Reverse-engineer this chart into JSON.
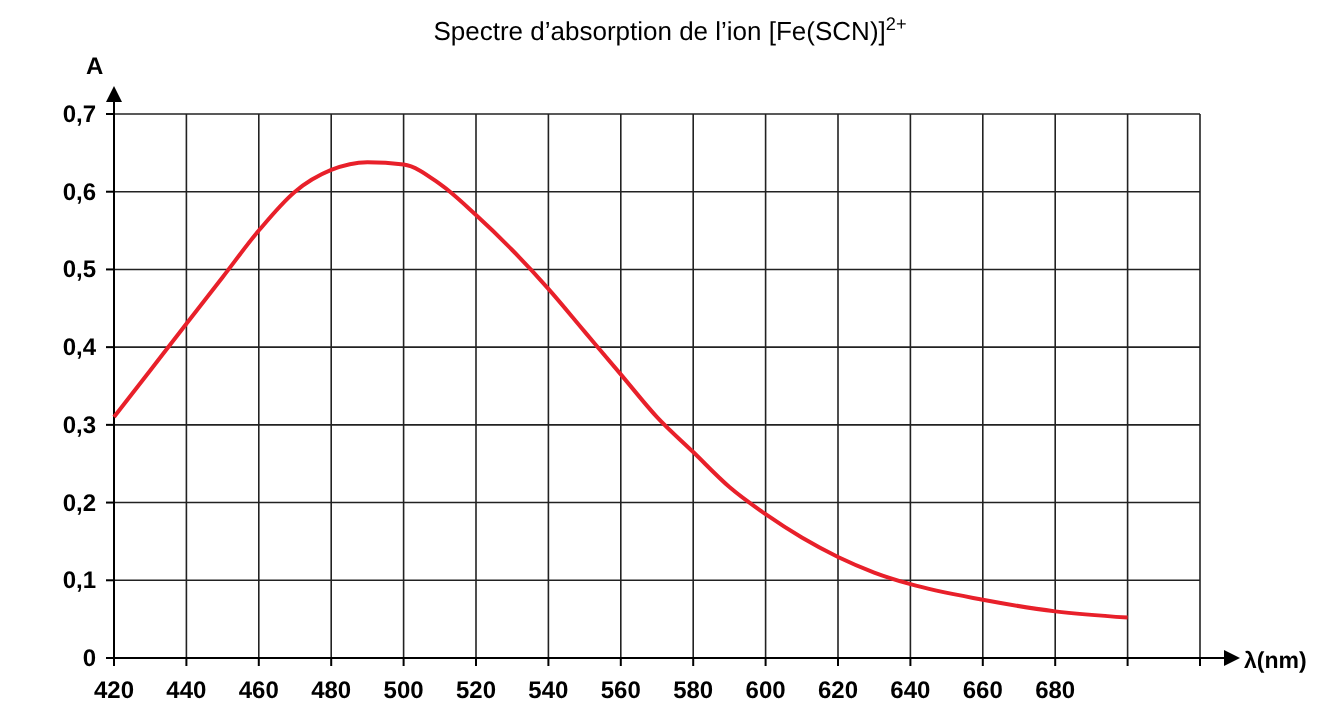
{
  "chart_data": {
    "type": "line",
    "title": "Spectre d’absorption de l’ion [Fe(SCN)]$^{2+}$",
    "xlabel": "λ(nm)",
    "ylabel": "A",
    "x": [
      420,
      430,
      440,
      450,
      460,
      470,
      480,
      490,
      500,
      510,
      520,
      530,
      540,
      550,
      560,
      570,
      580,
      590,
      600,
      610,
      620,
      630,
      640,
      660,
      680,
      700
    ],
    "series": [
      {
        "color": "#e8202a",
        "values": [
          0.31,
          0.37,
          0.43,
          0.49,
          0.55,
          0.6,
          0.628,
          0.638,
          0.635,
          0.61,
          0.57,
          0.525,
          0.475,
          0.42,
          0.365,
          0.31,
          0.265,
          0.22,
          0.185,
          0.155,
          0.13,
          0.11,
          0.095,
          0.075,
          0.06,
          0.052
        ]
      }
    ],
    "xlim": [
      420,
      720
    ],
    "xticks": [
      420,
      440,
      460,
      480,
      500,
      520,
      540,
      560,
      580,
      600,
      620,
      640,
      660,
      680,
      {
        "value": 700,
        "label": null
      },
      {
        "value": 720,
        "label": null
      }
    ],
    "ylim": [
      0,
      0.7
    ],
    "yticks": [
      {
        "value": 0,
        "label": "0"
      },
      {
        "value": 0.1,
        "label": "0,1"
      },
      {
        "value": 0.2,
        "label": "0,2"
      },
      {
        "value": 0.3,
        "label": "0,3"
      },
      {
        "value": 0.4,
        "label": "0,4"
      },
      {
        "value": 0.5,
        "label": "0,5"
      },
      {
        "value": 0.6,
        "label": "0,6"
      },
      {
        "value": 0.7,
        "label": "0,7"
      }
    ],
    "grid": true,
    "marker": "none",
    "line_style": "solid"
  }
}
